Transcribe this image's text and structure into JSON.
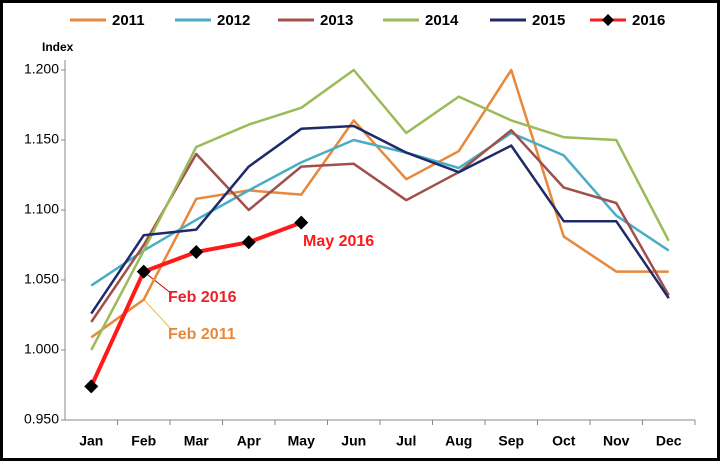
{
  "chart_data": {
    "type": "line",
    "y_label": "Index",
    "categories": [
      "Jan",
      "Feb",
      "Mar",
      "Apr",
      "May",
      "Jun",
      "Jul",
      "Aug",
      "Sep",
      "Oct",
      "Nov",
      "Dec"
    ],
    "series": [
      {
        "name": "2011",
        "color": "#e8883a",
        "values": [
          1.009,
          1.036,
          1.108,
          1.114,
          1.111,
          1.164,
          1.122,
          1.142,
          1.2,
          1.081,
          1.056,
          1.056
        ]
      },
      {
        "name": "2012",
        "color": "#4bacc6",
        "values": [
          1.046,
          1.071,
          1.093,
          1.114,
          1.134,
          1.15,
          1.141,
          1.13,
          1.155,
          1.139,
          1.096,
          1.071
        ]
      },
      {
        "name": "2013",
        "color": "#a0504a",
        "values": [
          1.02,
          1.075,
          1.14,
          1.1,
          1.131,
          1.133,
          1.107,
          1.127,
          1.157,
          1.116,
          1.105,
          1.039
        ]
      },
      {
        "name": "2014",
        "color": "#9bbb59",
        "values": [
          1.0,
          1.071,
          1.145,
          1.161,
          1.173,
          1.2,
          1.155,
          1.181,
          1.164,
          1.152,
          1.15,
          1.078
        ]
      },
      {
        "name": "2015",
        "color": "#1f2a6b",
        "values": [
          1.026,
          1.082,
          1.086,
          1.131,
          1.158,
          1.16,
          1.141,
          1.127,
          1.146,
          1.092,
          1.092,
          1.037
        ]
      },
      {
        "name": "2016",
        "color": "#ff1a1a",
        "marker": "diamond",
        "values": [
          0.974,
          1.056,
          1.07,
          1.077,
          1.091,
          null,
          null,
          null,
          null,
          null,
          null,
          null
        ]
      }
    ],
    "ylim": [
      0.95,
      1.2
    ],
    "yticks": [
      {
        "value": 0.95,
        "label": "0.950"
      },
      {
        "value": 1.0,
        "label": "1.000"
      },
      {
        "value": 1.05,
        "label": "1.050"
      },
      {
        "value": 1.1,
        "label": "1.100"
      },
      {
        "value": 1.15,
        "label": "1.150"
      },
      {
        "value": 1.2,
        "label": "1.200"
      }
    ],
    "annotations": [
      {
        "text": "May 2016",
        "color": "#ff1a1a"
      },
      {
        "text": "Feb 2016",
        "color": "#e8232a"
      },
      {
        "text": "Feb 2011",
        "color": "#e8883a"
      }
    ]
  }
}
